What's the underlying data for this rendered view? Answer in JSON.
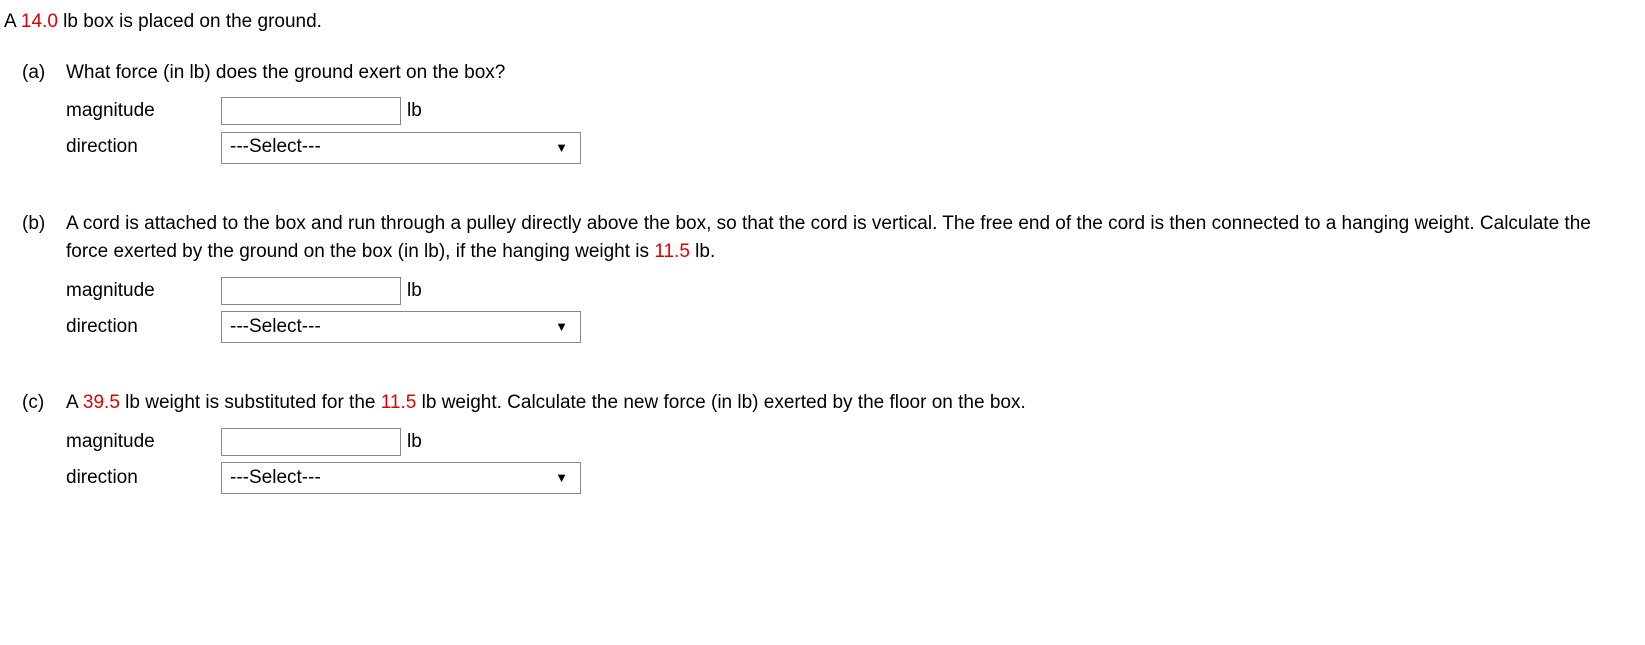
{
  "colors": {
    "text": "#000000",
    "highlight": "#dd0000",
    "background": "#ffffff",
    "input_border": "#888888"
  },
  "intro": {
    "prefix": "A ",
    "weight": "14.0",
    "suffix": " lb box is placed on the ground."
  },
  "parts": {
    "a": {
      "label": "(a)",
      "text_segments": [
        {
          "t": "What force (in lb) does the ground exert on the box?",
          "red": false
        }
      ],
      "magnitude": {
        "label": "magnitude",
        "value": "",
        "unit": "lb"
      },
      "direction": {
        "label": "direction",
        "placeholder": "---Select---"
      }
    },
    "b": {
      "label": "(b)",
      "text_segments": [
        {
          "t": "A cord is attached to the box and run through a pulley directly above the box, so that the cord is vertical. The free end of the cord is then connected to a hanging weight. Calculate the force exerted by the ground on the box (in lb), if the hanging weight is ",
          "red": false
        },
        {
          "t": "11.5",
          "red": true
        },
        {
          "t": " lb.",
          "red": false
        }
      ],
      "magnitude": {
        "label": "magnitude",
        "value": "",
        "unit": "lb"
      },
      "direction": {
        "label": "direction",
        "placeholder": "---Select---"
      }
    },
    "c": {
      "label": "(c)",
      "text_segments": [
        {
          "t": "A ",
          "red": false
        },
        {
          "t": "39.5",
          "red": true
        },
        {
          "t": " lb weight is substituted for the ",
          "red": false
        },
        {
          "t": "11.5",
          "red": true
        },
        {
          "t": " lb weight. Calculate the new force (in lb) exerted by the floor on the box.",
          "red": false
        }
      ],
      "magnitude": {
        "label": "magnitude",
        "value": "",
        "unit": "lb"
      },
      "direction": {
        "label": "direction",
        "placeholder": "---Select---"
      }
    }
  },
  "caret_glyph": "▼"
}
